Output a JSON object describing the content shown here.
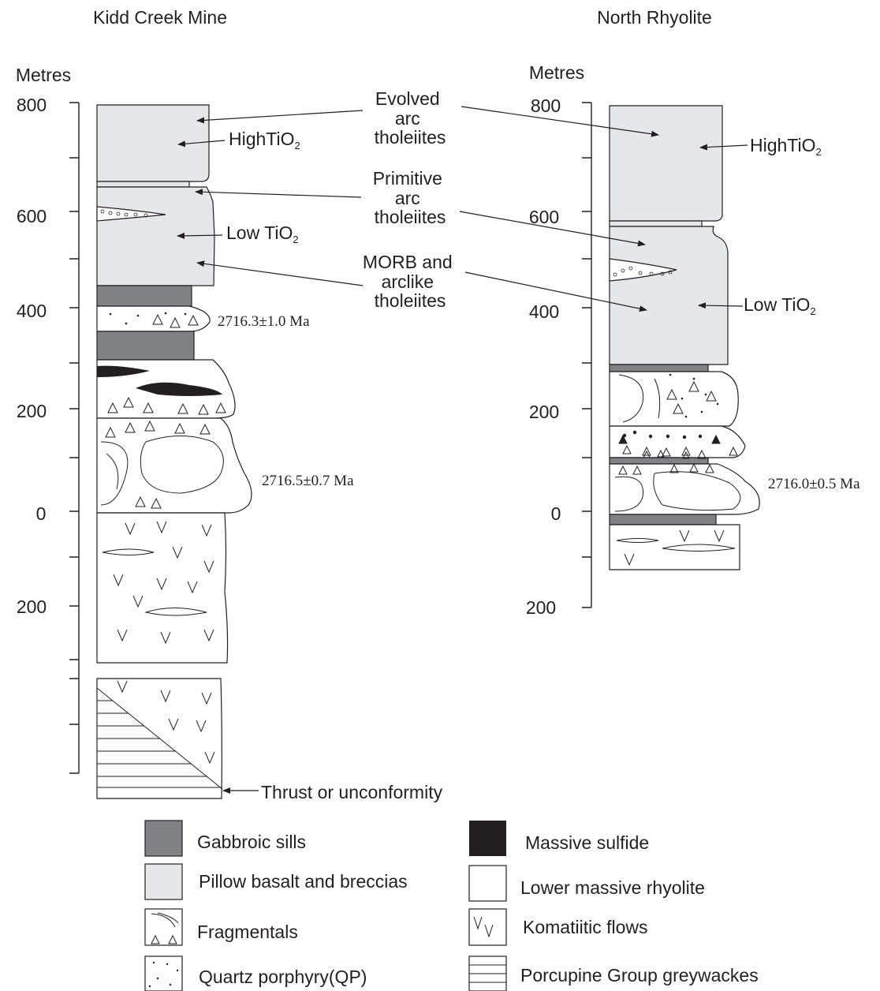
{
  "columns": [
    {
      "title": "Kidd Creek Mine",
      "axis_label": "Metres",
      "ticks": [
        "800",
        "600",
        "400",
        "200",
        "0",
        "200"
      ],
      "high_tio2": {
        "text": "HighTiO",
        "subscript": "2"
      },
      "low_tio2": {
        "text": "Low TiO",
        "subscript": "2"
      },
      "ages": [
        "2716.3±1.0 Ma",
        "2716.5±0.7 Ma"
      ]
    },
    {
      "title": "North Rhyolite",
      "axis_label": "Metres",
      "ticks": [
        "800",
        "600",
        "400",
        "200",
        "0",
        "200"
      ],
      "high_tio2": {
        "text": "HighTiO",
        "subscript": "2"
      },
      "low_tio2": {
        "text": "Low TiO",
        "subscript": "2"
      },
      "ages": [
        "2716.0±0.5 Ma"
      ]
    }
  ],
  "annotations": [
    [
      "Evolved",
      "arc",
      "tholeiites"
    ],
    [
      "Primitive",
      "arc",
      "tholeiites"
    ],
    [
      "MORB and",
      "arclike",
      "tholeiites"
    ]
  ],
  "thrust_label": "Thrust or unconformity",
  "legend": [
    "Gabbroic sills",
    "Pillow basalt and breccias",
    "Fragmentals",
    "Quartz porphyry(QP)",
    "Massive sulfide",
    "Lower massive rhyolite",
    "Komatiitic flows",
    "Porcupine Group greywackes"
  ]
}
